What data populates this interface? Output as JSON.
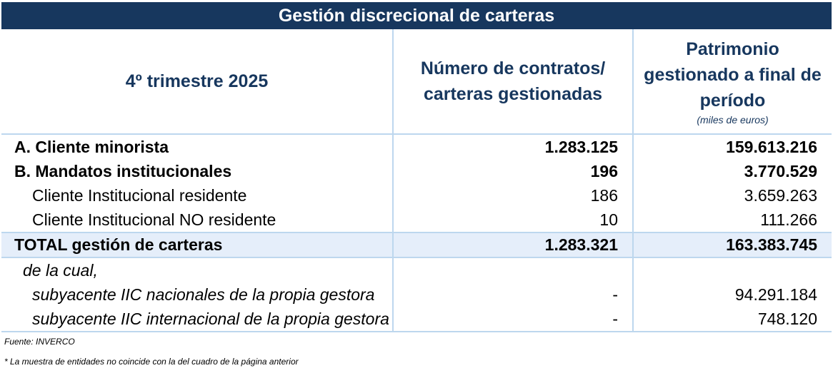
{
  "title": "Gestión discrecional de carteras",
  "header": {
    "period": "4º trimestre 2025",
    "col2_line1": "Número de contratos/",
    "col2_line2": "carteras gestionadas",
    "col3_line1": "Patrimonio",
    "col3_line2": "gestionado a final de",
    "col3_line3": "período",
    "col3_unit": "(miles de euros)"
  },
  "rows": [
    {
      "label": "A. Cliente minorista",
      "contracts": "1.283.125",
      "assets": "159.613.216"
    },
    {
      "label": "B. Mandatos institucionales",
      "contracts": "196",
      "assets": "3.770.529"
    },
    {
      "label": "Cliente Institucional residente",
      "contracts": "186",
      "assets": "3.659.263"
    },
    {
      "label": "Cliente Institucional NO residente",
      "contracts": "10",
      "assets": "111.266"
    },
    {
      "label": "TOTAL gestión de carteras",
      "contracts": "1.283.321",
      "assets": "163.383.745"
    },
    {
      "label": "de la cual,",
      "contracts": "",
      "assets": ""
    },
    {
      "label": "subyacente IIC nacionales de la propia gestora",
      "contracts": "-",
      "assets": "94.291.184"
    },
    {
      "label": "subyacente IIC internacional de la propia gestora",
      "contracts": "-",
      "assets": "748.120"
    }
  ],
  "footer": {
    "source": "Fuente: INVERCO",
    "note": "* La muestra de entidades no coincide con la del cuadro de la página anterior"
  }
}
